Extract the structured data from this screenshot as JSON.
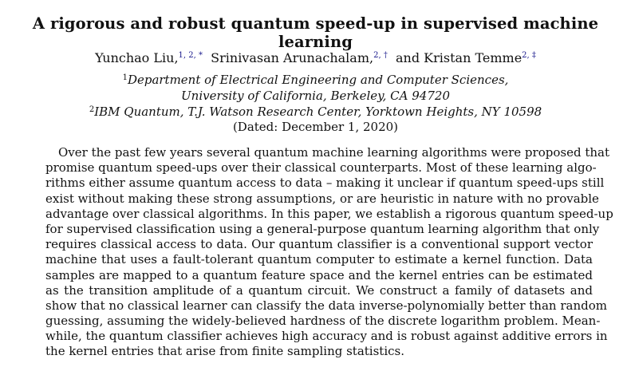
{
  "title": "A rigorous and robust quantum speed-up in supervised machine learning",
  "authors": [
    {
      "name": "Yunchao Liu,",
      "sup": "1, 2, *"
    },
    {
      "name": "Srinivasan Arunachalam,",
      "sup": "2, †"
    },
    {
      "name": "and Kristan Temme",
      "sup": "2, ‡"
    }
  ],
  "affiliations": [
    {
      "sup": "1",
      "lines": [
        "Department of Electrical Engineering and Computer Sciences,",
        "University of California, Berkeley, CA 94720"
      ]
    },
    {
      "sup": "2",
      "lines": [
        "IBM Quantum, T.J. Watson Research Center, Yorktown Heights, NY 10598"
      ]
    }
  ],
  "dated": "(Dated: December 1, 2020)",
  "abstract_lines": [
    "Over the past few years several quantum machine learning algorithms were proposed that",
    "promise quantum speed-ups over their classical counterparts. Most of these learning algo-",
    "rithms either assume quantum access to data – making it unclear if quantum speed-ups still",
    "exist without making these strong assumptions, or are heuristic in nature with no provable",
    "advantage over classical algorithms. In this paper, we establish a rigorous quantum speed-up",
    "for supervised classification using a general-purpose quantum learning algorithm that only",
    "requires classical access to data. Our quantum classifier is a conventional support vector",
    "machine that uses a fault-tolerant quantum computer to estimate a kernel function. Data",
    "samples are mapped to a quantum feature space and the kernel entries can be estimated",
    "as the transition amplitude of a quantum circuit. We construct a family of datasets and",
    "show that no classical learner can classify the data inverse-polynomially better than random",
    "guessing, assuming the widely-believed hardness of the discrete logarithm problem. Mean-",
    "while, the quantum classifier achieves high accuracy and is robust against additive errors in",
    "the kernel entries that arise from finite sampling statistics."
  ]
}
